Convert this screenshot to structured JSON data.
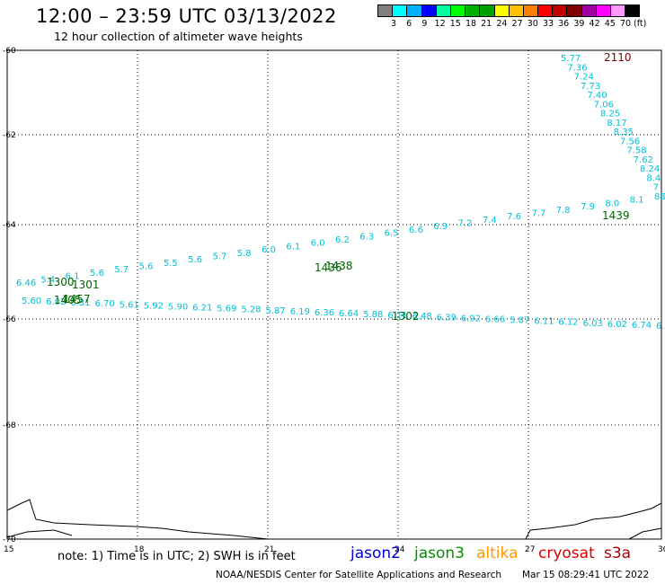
{
  "header": {
    "title": "12:00 – 23:59 UTC 03/13/2022",
    "subtitle": "12 hour collection of altimeter wave heights"
  },
  "colorbar": {
    "colors": [
      "#7f7f7f",
      "#00ffff",
      "#00b0ff",
      "#0000ff",
      "#00ffa0",
      "#00ff00",
      "#00b000",
      "#00a000",
      "#ffff00",
      "#ffc000",
      "#ff8000",
      "#ff0000",
      "#c00000",
      "#800000",
      "#a000a0",
      "#ff00ff",
      "#ff99ff",
      "#000000"
    ],
    "labels": [
      "3",
      "6",
      "9",
      "12",
      "15",
      "18",
      "21",
      "24",
      "27",
      "30",
      "33",
      "36",
      "39",
      "42",
      "45",
      "70"
    ],
    "units": "(ft)"
  },
  "map": {
    "lat_labels": [
      "-60",
      "-62",
      "-64",
      "-66",
      "-68",
      "-70"
    ],
    "lon_labels": [
      "15",
      "18",
      "21",
      "24",
      "27",
      "30"
    ],
    "tracks": [
      {
        "name": "2110",
        "color": "#800000",
        "values": [
          "5.77",
          "7.36",
          "7.24",
          "7.73",
          "7.40",
          "7.06",
          "8.25",
          "8.17",
          "8.35",
          "7.56",
          "7.58",
          "7.62",
          "8.24",
          "8.4",
          "7",
          "8"
        ]
      },
      {
        "name": "1300",
        "color": "#006400",
        "values": [
          "6.46",
          "5.4",
          "6.1",
          "5.6",
          "5.7",
          "5.6",
          "5.5",
          "5.6",
          "5.7",
          "5.8",
          "6.0",
          "6.1",
          "6.0",
          "6.2",
          "6.3",
          "6.5",
          "6.6",
          "6.9",
          "7.2",
          "7.4",
          "7.6",
          "7.7",
          "7.8",
          "7.9",
          "8.0",
          "8.1",
          "8.3"
        ]
      },
      {
        "name": "1302",
        "color": "#006400",
        "values": [
          "5.60",
          "6.02",
          "6.31",
          "6.70",
          "5.61",
          "5.92",
          "5.90",
          "6.21",
          "5.69",
          "5.28",
          "5.87",
          "6.19",
          "6.36",
          "6.64",
          "5.88",
          "6.11",
          "6.48",
          "6.39",
          "6.92",
          "6.66",
          "5.87",
          "6.11",
          "6.12",
          "6.03",
          "6.02",
          "6.74",
          "6.4"
        ]
      }
    ],
    "pass_ids": [
      "1301",
      "1405",
      "1436",
      "1438",
      "1439",
      "1457"
    ]
  },
  "footer": {
    "note": "note: 1) Time is in UTC; 2) SWH is in feet",
    "missions": [
      {
        "name": "jason2",
        "color": "#0000cc"
      },
      {
        "name": "jason3",
        "color": "#009000"
      },
      {
        "name": "altika",
        "color": "#ff9900"
      },
      {
        "name": "cryosat",
        "color": "#dd0000"
      },
      {
        "name": "s3a",
        "color": "#aa0000"
      }
    ],
    "credit": "NOAA/NESDIS Center for Satellite Applications and Research",
    "timestamp": "Mar 15 08:29:41 UTC 2022"
  }
}
